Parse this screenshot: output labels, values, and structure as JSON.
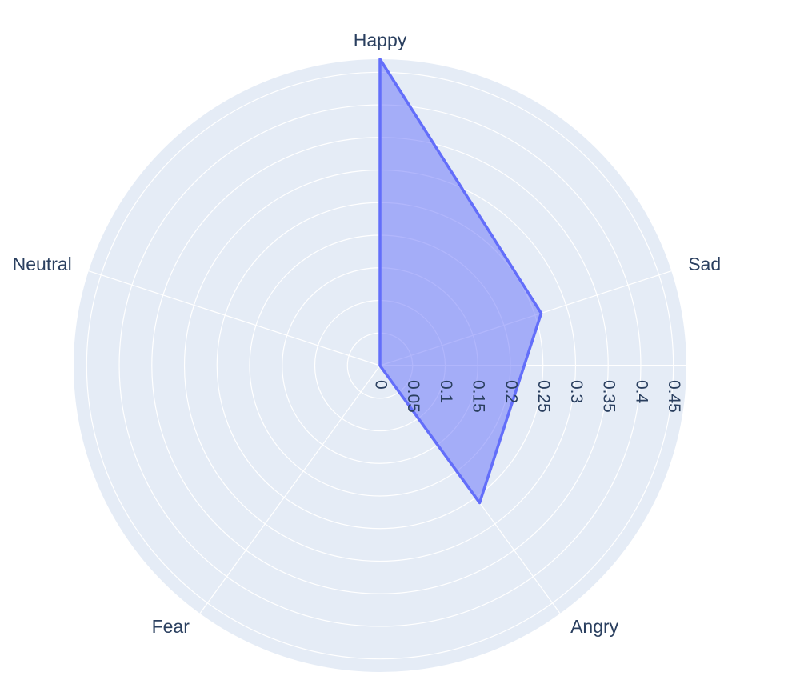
{
  "chart_data": {
    "type": "radar",
    "categories": [
      "Happy",
      "Sad",
      "Angry",
      "Fear",
      "Neutral"
    ],
    "values": [
      0.47,
      0.26,
      0.26,
      0,
      0
    ],
    "radial_ticks": [
      "0",
      "0.05",
      "0.1",
      "0.15",
      "0.2",
      "0.25",
      "0.3",
      "0.35",
      "0.4",
      "0.45"
    ],
    "radial_tick_values": [
      0,
      0.05,
      0.1,
      0.15,
      0.2,
      0.25,
      0.3,
      0.35,
      0.4,
      0.45
    ],
    "rmax": 0.47,
    "grid": true,
    "colors": {
      "polar_bg": "#e5ecf6",
      "grid": "#ffffff",
      "fill": "#636efa",
      "fill_opacity": 0.5,
      "line": "#636efa",
      "text": "#2a3f5f"
    }
  }
}
